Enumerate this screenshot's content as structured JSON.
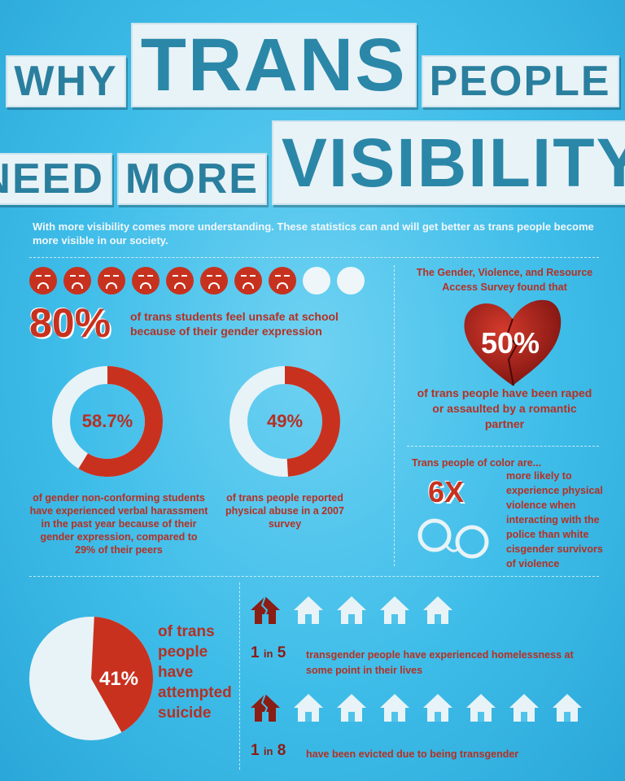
{
  "title": {
    "word1": "WHY",
    "word2": "TRANS",
    "word3": "PEOPLE",
    "word4": "NEED",
    "word5": "MORE",
    "word6": "VISIBILITY"
  },
  "intro": "With more visibility comes more understanding. These statistics can and will get better  as trans people become more visible in our society.",
  "unsafe": {
    "pct": "80%",
    "text": "of trans students feel unsafe at school because of their gender expression",
    "faces_filled": 8,
    "faces_total": 10
  },
  "harassment": {
    "pct": "58.7%",
    "value": 58.7,
    "text": "of gender  non-conforming students  have experienced verbal  harassment in the past year  because of their gender expression, compared to 29% of their peers"
  },
  "abuse": {
    "pct": "49%",
    "value": 49,
    "text": "of trans people reported physical abuse in a 2007 survey"
  },
  "survey": {
    "intro": "The Gender, Violence, and Resource Access Survey found that",
    "pct": "50%",
    "text": "of trans people have been raped or assaulted by a romantic partner"
  },
  "poc": {
    "intro": "Trans people of color  are...",
    "multiplier": "6X",
    "text": "more likely to experience physical violence when interacting with the police than white cisgender survivors of violence"
  },
  "suicide": {
    "pct": "41%",
    "value": 41,
    "text": "of trans people have attempted suicide"
  },
  "homeless": {
    "ratio_a": "1",
    "ratio_in": "in",
    "ratio_b": "5",
    "text": "transgender people have experienced homelessness at some point in their lives"
  },
  "evicted": {
    "ratio_a": "1",
    "ratio_in": "in",
    "ratio_b": "8",
    "text": "have been evicted due to being transgender"
  },
  "colors": {
    "red": "#c9311f",
    "pale": "#e8f3f7",
    "bg": "#3fbde9"
  }
}
